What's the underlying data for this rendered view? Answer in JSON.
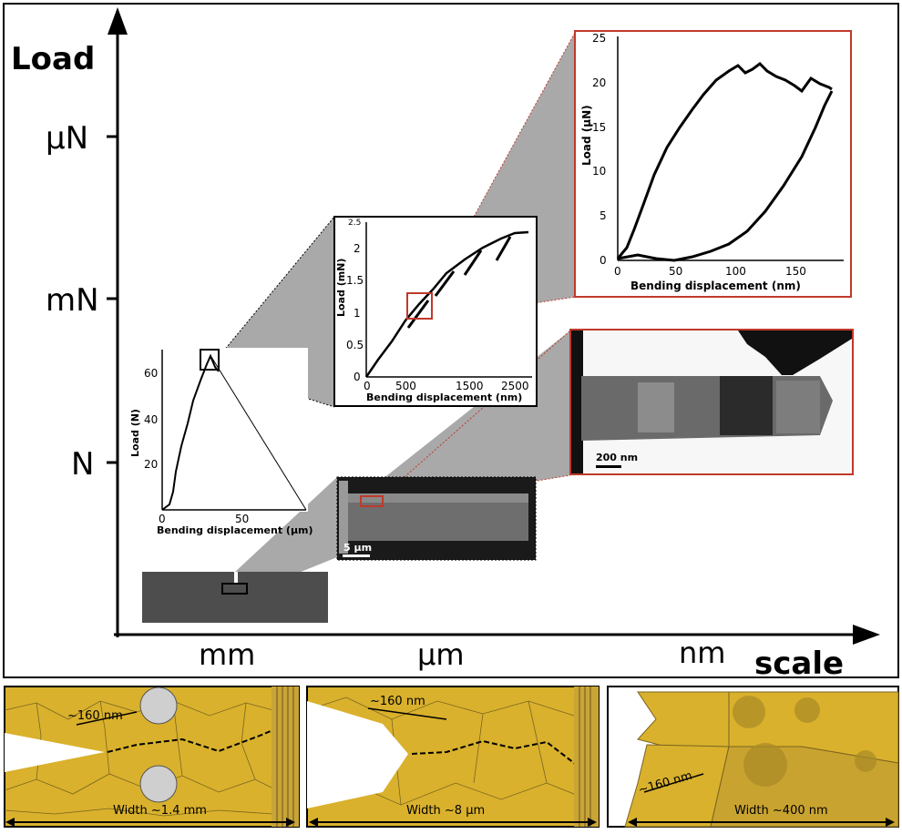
{
  "main_axes": {
    "y_title": "Load",
    "y_levels": [
      "µN",
      "mN",
      "N"
    ],
    "x_levels": [
      "mm",
      "µm",
      "nm"
    ],
    "x_title": "scale"
  },
  "plot_macro": {
    "xlabel": "Bending displacement (µm)",
    "ylabel": "Load (N)",
    "xticks": [
      "0",
      "50"
    ],
    "yticks": [
      "20",
      "40",
      "60"
    ]
  },
  "plot_micro": {
    "xlabel": "Bending displacement (nm)",
    "ylabel": "Load (mN)",
    "xticks": [
      "0",
      "500",
      "1500",
      "2500"
    ],
    "yticks": [
      "0",
      "0.5",
      "1",
      "1.5",
      "2",
      "2.5"
    ]
  },
  "plot_nano": {
    "xlabel": "Bending displacement (nm)",
    "ylabel": "Load (µN)",
    "xticks": [
      "0",
      "50",
      "100",
      "150"
    ],
    "yticks": [
      "0",
      "5",
      "10",
      "15",
      "20",
      "25"
    ]
  },
  "sem_image": {
    "scalebar": "5 µm"
  },
  "tem_image": {
    "scalebar": "200 nm"
  },
  "panels": [
    {
      "grain_label": "~160 nm",
      "width_label": "Width ~1.4 mm"
    },
    {
      "grain_label": "~160 nm",
      "width_label": "Width ~8 µm"
    },
    {
      "grain_label": "~160 nm",
      "width_label": "Width ~400 nm"
    }
  ],
  "colors": {
    "grain": "#d9b12c",
    "grain_dark": "#c4a02a",
    "accent_red": "#c0392b",
    "sem_gray": "#4a4a4a"
  }
}
